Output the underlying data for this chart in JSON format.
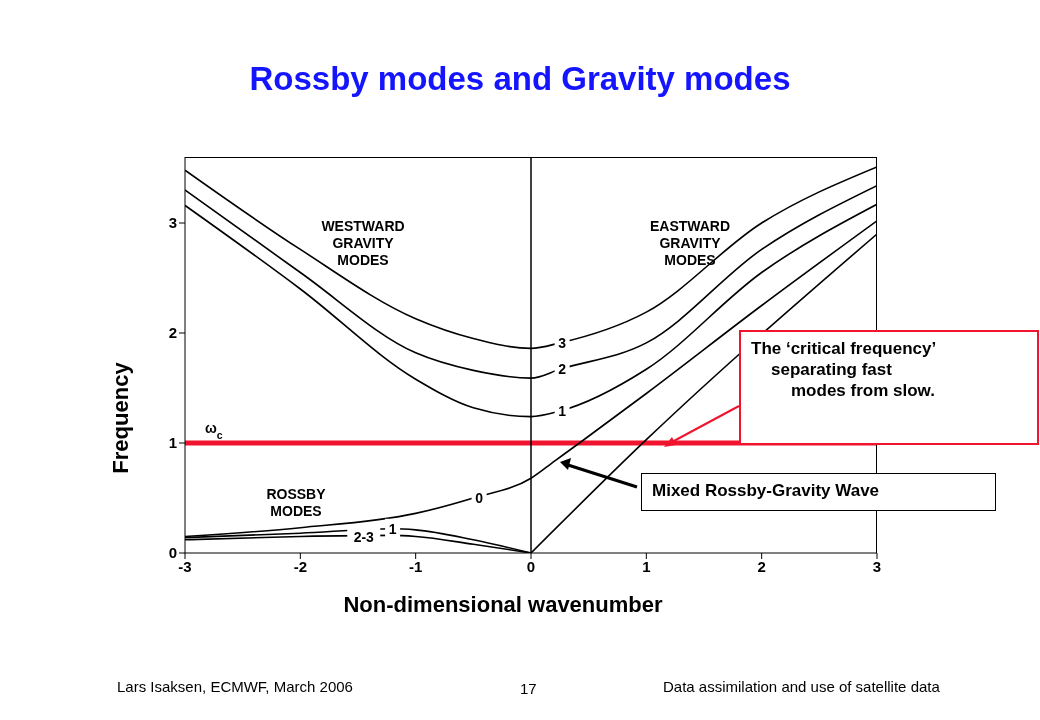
{
  "chart_data": {
    "type": "line",
    "title": "Rossby modes and Gravity modes",
    "xlabel": "Non-dimensional wavenumber",
    "ylabel": "Frequency",
    "xlim": [
      -3,
      3
    ],
    "xticks": [
      -3,
      -2,
      -1,
      0,
      1,
      2,
      3
    ],
    "ylim": [
      0,
      3.6
    ],
    "yticks": [
      0,
      1,
      2,
      3
    ],
    "grid": false,
    "series": [
      {
        "color": "#000000",
        "x": [
          -3,
          -2,
          -1,
          -0.5,
          0,
          0.25,
          1,
          2,
          3
        ],
        "values": [
          3.48,
          2.76,
          2.13,
          1.95,
          1.86,
          1.91,
          2.19,
          3.0,
          3.51
        ]
      },
      {
        "color": "#000000",
        "x": [
          -3,
          -2,
          -1,
          -0.5,
          0,
          0.25,
          1,
          2,
          3
        ],
        "values": [
          3.3,
          2.55,
          1.82,
          1.66,
          1.59,
          1.67,
          1.91,
          2.76,
          3.34
        ]
      },
      {
        "color": "#000000",
        "x": [
          -3,
          -2,
          -1,
          -0.5,
          0,
          0.25,
          1,
          2,
          3
        ],
        "values": [
          3.16,
          2.4,
          1.58,
          1.32,
          1.24,
          1.29,
          1.67,
          2.55,
          3.17
        ]
      },
      {
        "color": "#000000",
        "x": [
          -3,
          -2,
          -1,
          -0.5,
          0,
          0.21,
          0.42,
          1,
          2,
          3
        ],
        "values": [
          0.15,
          0.23,
          0.36,
          0.5,
          0.68,
          0.84,
          1.0,
          1.45,
          2.25,
          3.02
        ]
      },
      {
        "color": "#000000",
        "x": [
          0,
          1,
          3
        ],
        "values": [
          0,
          1.03,
          2.9
        ]
      },
      {
        "color": "#000000",
        "x": [
          -3,
          -2,
          -1.2,
          -1,
          -0.5,
          0
        ],
        "values": [
          0.14,
          0.18,
          0.22,
          0.21,
          0.12,
          0
        ]
      },
      {
        "color": "#000000",
        "x": [
          -3,
          -2,
          -1.2,
          -1,
          -0.5,
          0
        ],
        "values": [
          0.12,
          0.15,
          0.16,
          0.15,
          0.08,
          0
        ]
      }
    ],
    "ref_lines": [
      {
        "axis": "y",
        "value": 1,
        "label": "ω$_{c}$",
        "color": "#f0142e"
      },
      {
        "axis": "x",
        "value": 0,
        "color": "#000000"
      }
    ],
    "annotations": [
      "WESTWARD\nGRAVITY\nMODES",
      "EASTWARD\nGRAVITY\nMODES",
      "ROSSBY\nMODES",
      "The ‘critical frequency’\nseparating fast\nmodes from slow.",
      "Mixed Rossby-Gravity Wave",
      "Lars Isaksen, ECMWF, March 2006",
      "17",
      "Data assimilation and use of satellite data",
      {
        "text": "3",
        "x": 0.27,
        "y": 1.91
      },
      {
        "text": "2",
        "x": 0.27,
        "y": 1.67
      },
      {
        "text": "1",
        "x": 0.27,
        "y": 1.29
      },
      {
        "text": "0",
        "x": -0.45,
        "y": 0.5
      },
      {
        "text": "1",
        "x": -1.2,
        "y": 0.22
      },
      {
        "text": "2-3",
        "x": -1.45,
        "y": 0.15
      }
    ]
  }
}
